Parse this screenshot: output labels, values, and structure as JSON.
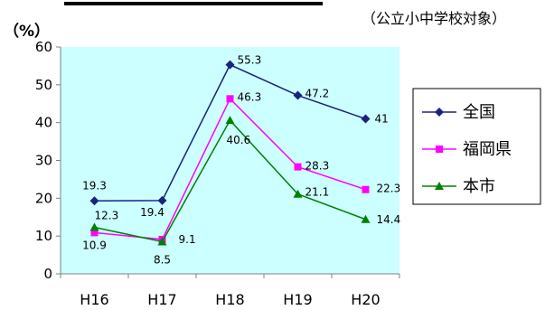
{
  "chart_data": {
    "type": "line",
    "categories": [
      "H16",
      "H17",
      "H18",
      "H19",
      "H20"
    ],
    "series": [
      {
        "name": "全国",
        "values": [
          19.3,
          19.4,
          55.3,
          47.2,
          41
        ],
        "color": "#1a237e",
        "marker": "diamond"
      },
      {
        "name": "福岡県",
        "values": [
          10.9,
          9.1,
          46.3,
          28.3,
          22.3
        ],
        "color": "#ff00ff",
        "marker": "square"
      },
      {
        "name": "本市",
        "values": [
          12.3,
          8.5,
          40.6,
          21.1,
          14.4
        ],
        "color": "#008000",
        "marker": "triangle"
      }
    ],
    "ylabel": "（%）",
    "note": "（公立小中学校対象）",
    "ylim": [
      0,
      60
    ],
    "yticks": [
      0,
      10,
      20,
      30,
      40,
      50,
      60
    ],
    "grid": false,
    "plot_background": "#ccffff",
    "legend_position": "right"
  }
}
